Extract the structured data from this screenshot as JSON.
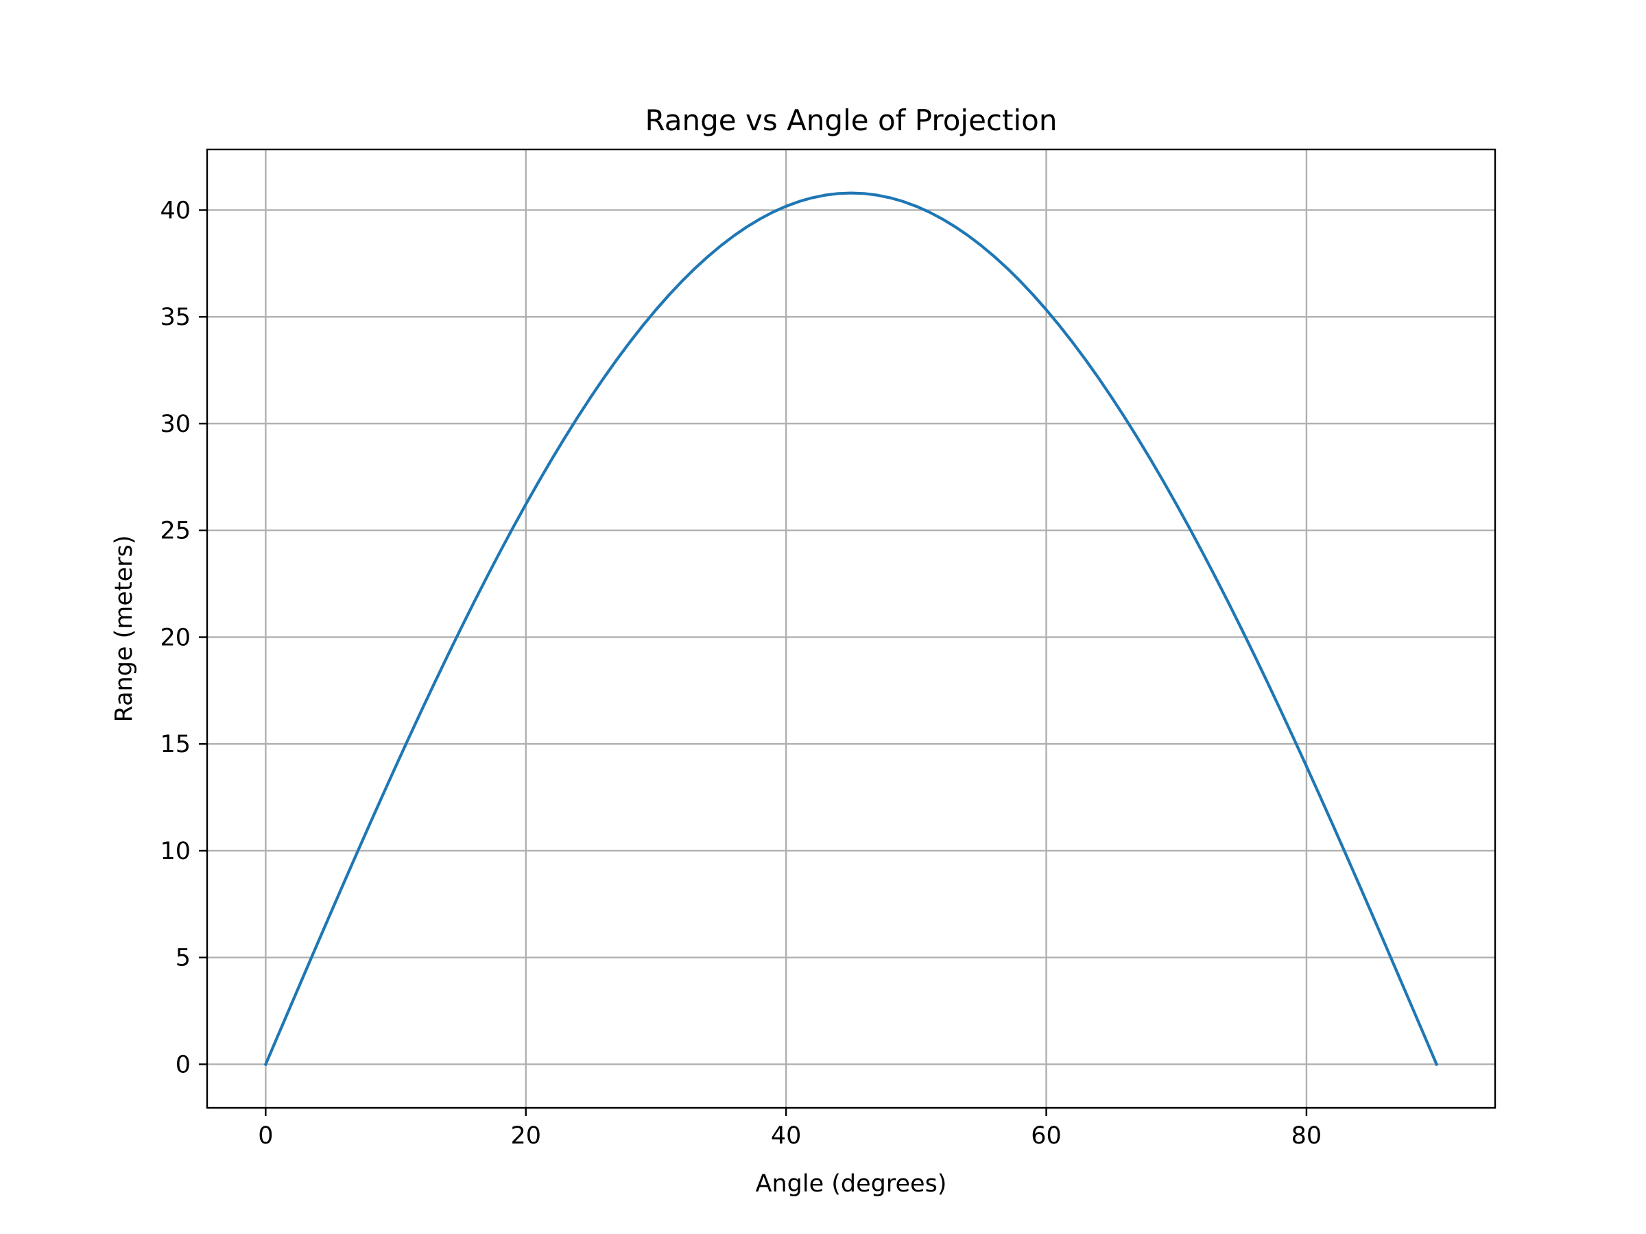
{
  "chart_data": {
    "type": "line",
    "title": "Range vs Angle of Projection",
    "xlabel": "Angle (degrees)",
    "ylabel": "Range (meters)",
    "xlim": [
      -4.5,
      94.5
    ],
    "ylim": [
      -2.04,
      42.84
    ],
    "xticks": [
      0,
      20,
      40,
      60,
      80
    ],
    "yticks": [
      0,
      5,
      10,
      15,
      20,
      25,
      30,
      35,
      40
    ],
    "grid": true,
    "legend": "none",
    "series": [
      {
        "name": "Range",
        "color": "#1f77b4",
        "formula": "R = R_max * sin(2 * angle)",
        "r_max": 40.8,
        "x_start": 0,
        "x_end": 90,
        "x_step": 1
      }
    ]
  }
}
